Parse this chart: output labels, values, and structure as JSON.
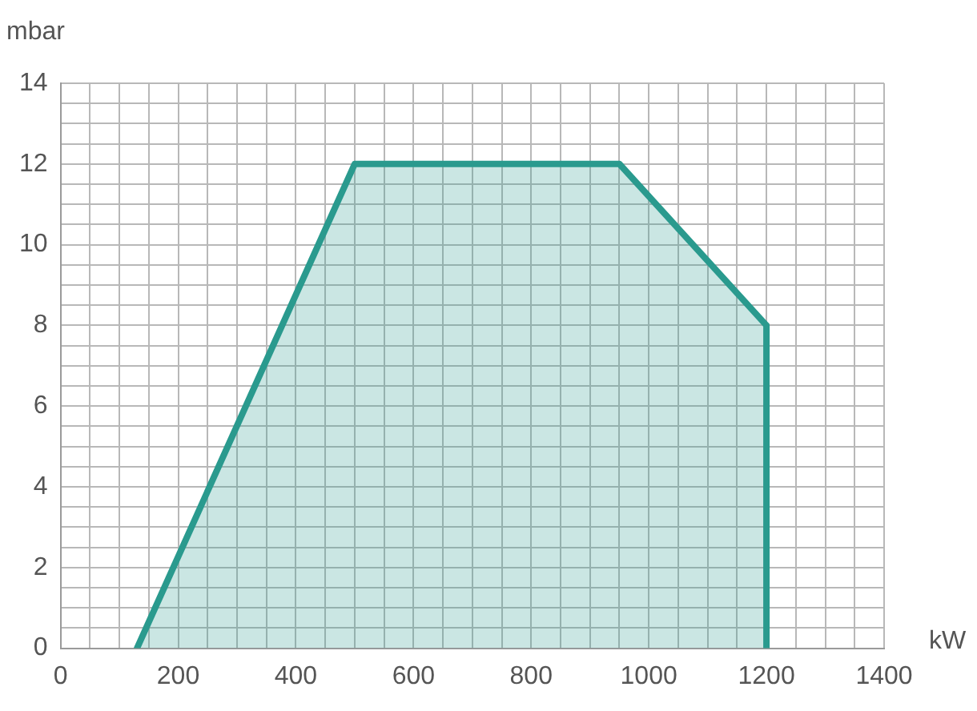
{
  "chart_data": {
    "type": "area",
    "xlabel": "kW",
    "ylabel": "mbar",
    "series": [
      {
        "color": "#2a9a8e",
        "x": [
          130,
          500,
          950,
          1200,
          1200
        ],
        "values": [
          0,
          12,
          12,
          8,
          0
        ]
      }
    ],
    "xlim": [
      0,
      1400
    ],
    "ylim": [
      0,
      14
    ],
    "xticks": [
      0,
      {
        "value": 50,
        "label": null
      },
      {
        "value": 100,
        "label": null
      },
      {
        "value": 150,
        "label": null
      },
      200,
      {
        "value": 250,
        "label": null
      },
      {
        "value": 300,
        "label": null
      },
      {
        "value": 350,
        "label": null
      },
      400,
      {
        "value": 450,
        "label": null
      },
      {
        "value": 500,
        "label": null
      },
      {
        "value": 550,
        "label": null
      },
      600,
      {
        "value": 650,
        "label": null
      },
      {
        "value": 700,
        "label": null
      },
      {
        "value": 750,
        "label": null
      },
      800,
      {
        "value": 850,
        "label": null
      },
      {
        "value": 900,
        "label": null
      },
      {
        "value": 950,
        "label": null
      },
      1000,
      {
        "value": 1050,
        "label": null
      },
      {
        "value": 1100,
        "label": null
      },
      {
        "value": 1150,
        "label": null
      },
      1200,
      {
        "value": 1250,
        "label": null
      },
      {
        "value": 1300,
        "label": null
      },
      {
        "value": 1350,
        "label": null
      },
      1400
    ],
    "yticks": [
      0,
      {
        "value": 0.5,
        "label": null
      },
      {
        "value": 1,
        "label": null
      },
      {
        "value": 1.5,
        "label": null
      },
      2,
      {
        "value": 2.5,
        "label": null
      },
      {
        "value": 3,
        "label": null
      },
      {
        "value": 3.5,
        "label": null
      },
      4,
      {
        "value": 4.5,
        "label": null
      },
      {
        "value": 5,
        "label": null
      },
      {
        "value": 5.5,
        "label": null
      },
      6,
      {
        "value": 6.5,
        "label": null
      },
      {
        "value": 7,
        "label": null
      },
      {
        "value": 7.5,
        "label": null
      },
      8,
      {
        "value": 8.5,
        "label": null
      },
      {
        "value": 9,
        "label": null
      },
      {
        "value": 9.5,
        "label": null
      },
      10,
      {
        "value": 10.5,
        "label": null
      },
      {
        "value": 11,
        "label": null
      },
      {
        "value": 11.5,
        "label": null
      },
      12,
      {
        "value": 12.5,
        "label": null
      },
      {
        "value": 13,
        "label": null
      },
      {
        "value": 13.5,
        "label": null
      },
      14
    ],
    "grid": true,
    "marker": "none"
  }
}
